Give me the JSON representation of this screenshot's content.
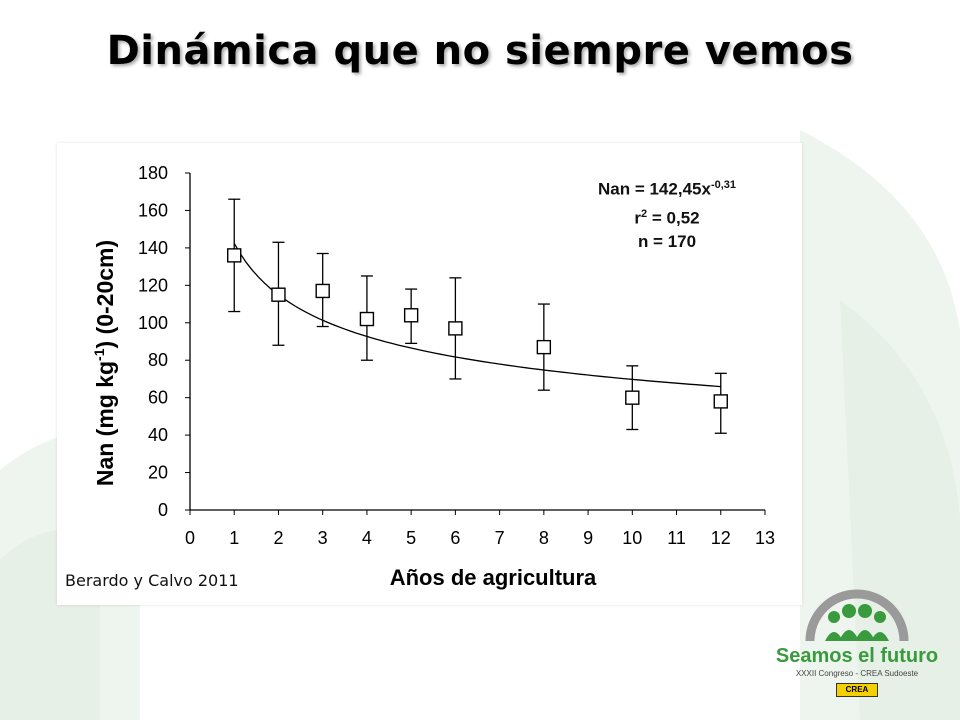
{
  "slide": {
    "title": "Dinámica que no siempre vemos"
  },
  "citation": "Berardo y Calvo 2011",
  "chart_data": {
    "type": "scatter",
    "title": "",
    "xlabel": "Años de agricultura",
    "ylabel_main": "Nan (mg kg",
    "ylabel_sup": "-1",
    "ylabel_tail": ") (0-20cm)",
    "xlim": [
      0,
      13
    ],
    "ylim": [
      0,
      180
    ],
    "x_ticks": [
      0,
      1,
      2,
      3,
      4,
      5,
      6,
      7,
      8,
      9,
      10,
      11,
      12,
      13
    ],
    "y_ticks": [
      0,
      20,
      40,
      60,
      80,
      100,
      120,
      140,
      160,
      180
    ],
    "grid": false,
    "series": [
      {
        "x": [
          1,
          2,
          3,
          4,
          5,
          6,
          8,
          10,
          12
        ],
        "y": [
          136,
          115,
          117,
          102,
          104,
          97,
          87,
          60,
          58
        ],
        "error_low": [
          106,
          88,
          98,
          80,
          89,
          70,
          64,
          43,
          41
        ],
        "error_high": [
          166,
          143,
          137,
          125,
          118,
          124,
          110,
          77,
          73
        ]
      }
    ],
    "fit": {
      "a": 142.45,
      "b": -0.31,
      "x_range": [
        1,
        12
      ]
    },
    "annotations": {
      "eq_lhs": "Nan",
      "eq_rhs": "= 142,45x",
      "eq_exp": "-0,31",
      "r2_label": "r",
      "r2_sup": "2",
      "r2_value": "= 0,52",
      "n_text": "n = 170"
    }
  },
  "logo": {
    "name": "Seamos el futuro",
    "subtitle": "XXXII Congreso - CREA Sudoeste",
    "badge": "CREA",
    "colors": {
      "green": "#3a9a3e",
      "gray": "#9a9a9a",
      "yellow": "#f5d000"
    }
  },
  "colors": {
    "background_deco": "#e8f2e8",
    "axis": "#000000"
  }
}
